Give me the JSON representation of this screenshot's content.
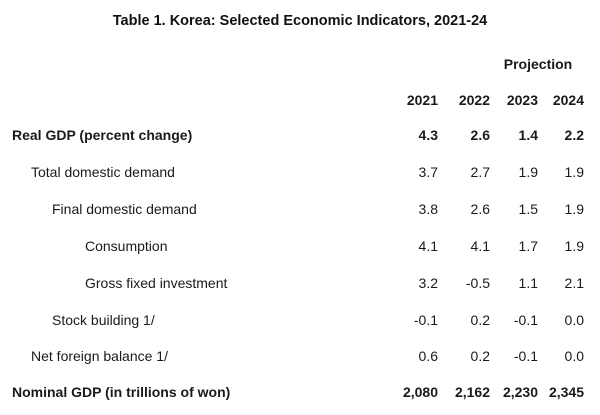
{
  "title": "Table 1. Korea: Selected Economic Indicators, 2021-24",
  "projection_label": "Projection",
  "years": [
    "2021",
    "2022",
    "2023",
    "2024"
  ],
  "rows": [
    {
      "label": "Real GDP (percent change)",
      "values": [
        "4.3",
        "2.6",
        "1.4",
        "2.2"
      ],
      "bold": true,
      "indent": 0
    },
    {
      "label": "Total domestic demand",
      "values": [
        "3.7",
        "2.7",
        "1.9",
        "1.9"
      ],
      "bold": false,
      "indent": 1
    },
    {
      "label": "Final domestic demand",
      "values": [
        "3.8",
        "2.6",
        "1.5",
        "1.9"
      ],
      "bold": false,
      "indent": 2
    },
    {
      "label": "Consumption",
      "values": [
        "4.1",
        "4.1",
        "1.7",
        "1.9"
      ],
      "bold": false,
      "indent": 3
    },
    {
      "label": "Gross fixed investment",
      "values": [
        "3.2",
        "-0.5",
        "1.1",
        "2.1"
      ],
      "bold": false,
      "indent": 3
    },
    {
      "label": "Stock building 1/",
      "values": [
        "-0.1",
        "0.2",
        "-0.1",
        "0.0"
      ],
      "bold": false,
      "indent": 2
    },
    {
      "label": "Net foreign balance 1/",
      "values": [
        "0.6",
        "0.2",
        "-0.1",
        "0.0"
      ],
      "bold": false,
      "indent": 1
    },
    {
      "label": "Nominal GDP (in trillions of won)",
      "values": [
        "2,080",
        "2,162",
        "2,230",
        "2,345"
      ],
      "bold": true,
      "indent": 0
    }
  ]
}
